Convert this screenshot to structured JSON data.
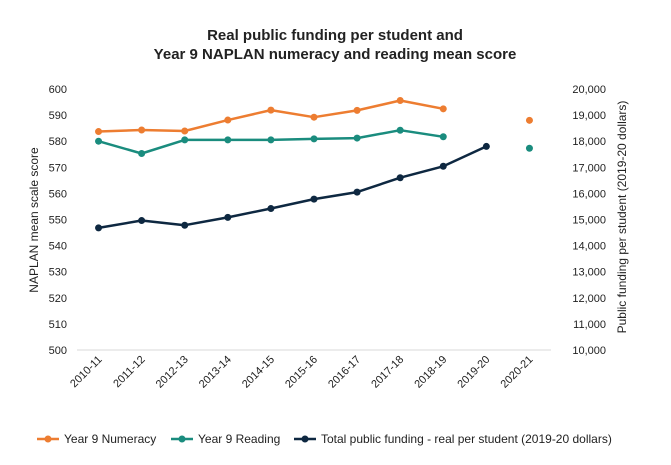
{
  "chart_data": {
    "type": "line",
    "title": "Real public funding per student and",
    "subtitle": "Year 9 NAPLAN numeracy and reading mean score",
    "ylabel": "NAPLAN mean scale score",
    "y2label": "Public funding per student (2019-20 dollars)",
    "categories": [
      "2010-11",
      "2011-12",
      "2012-13",
      "2013-14",
      "2014-15",
      "2015-16",
      "2016-17",
      "2017-18",
      "2018-19",
      "2019-20",
      "2020-21"
    ],
    "ylim": [
      500,
      600
    ],
    "y_ticks": [
      "500",
      "510",
      "520",
      "530",
      "540",
      "550",
      "560",
      "570",
      "580",
      "590",
      "600"
    ],
    "y2lim": [
      10000,
      20000
    ],
    "y2_ticks": [
      "10,000",
      "11,000",
      "12,000",
      "13,000",
      "14,000",
      "15,000",
      "16,000",
      "17,000",
      "18,000",
      "19,000",
      "20,000"
    ],
    "grid": false,
    "legend_position": "bottom",
    "series": [
      {
        "name": "Year 9 Numeracy",
        "axis": "left",
        "color": "#ED7D31",
        "values": [
          583.7,
          584.3,
          583.9,
          588.1,
          591.9,
          589.2,
          591.8,
          595.6,
          592.4,
          null,
          588.0
        ]
      },
      {
        "name": "Year 9 Reading",
        "axis": "left",
        "color": "#1A8C7E",
        "values": [
          580.0,
          575.3,
          580.5,
          580.5,
          580.5,
          580.9,
          581.2,
          584.2,
          581.7,
          null,
          577.3
        ]
      },
      {
        "name": "Total public funding - real per student (2019-20 dollars)",
        "axis": "right",
        "color": "#0E2841",
        "values": [
          14680,
          14960,
          14780,
          15080,
          15420,
          15780,
          16050,
          16600,
          17040,
          17800,
          null
        ]
      }
    ]
  }
}
